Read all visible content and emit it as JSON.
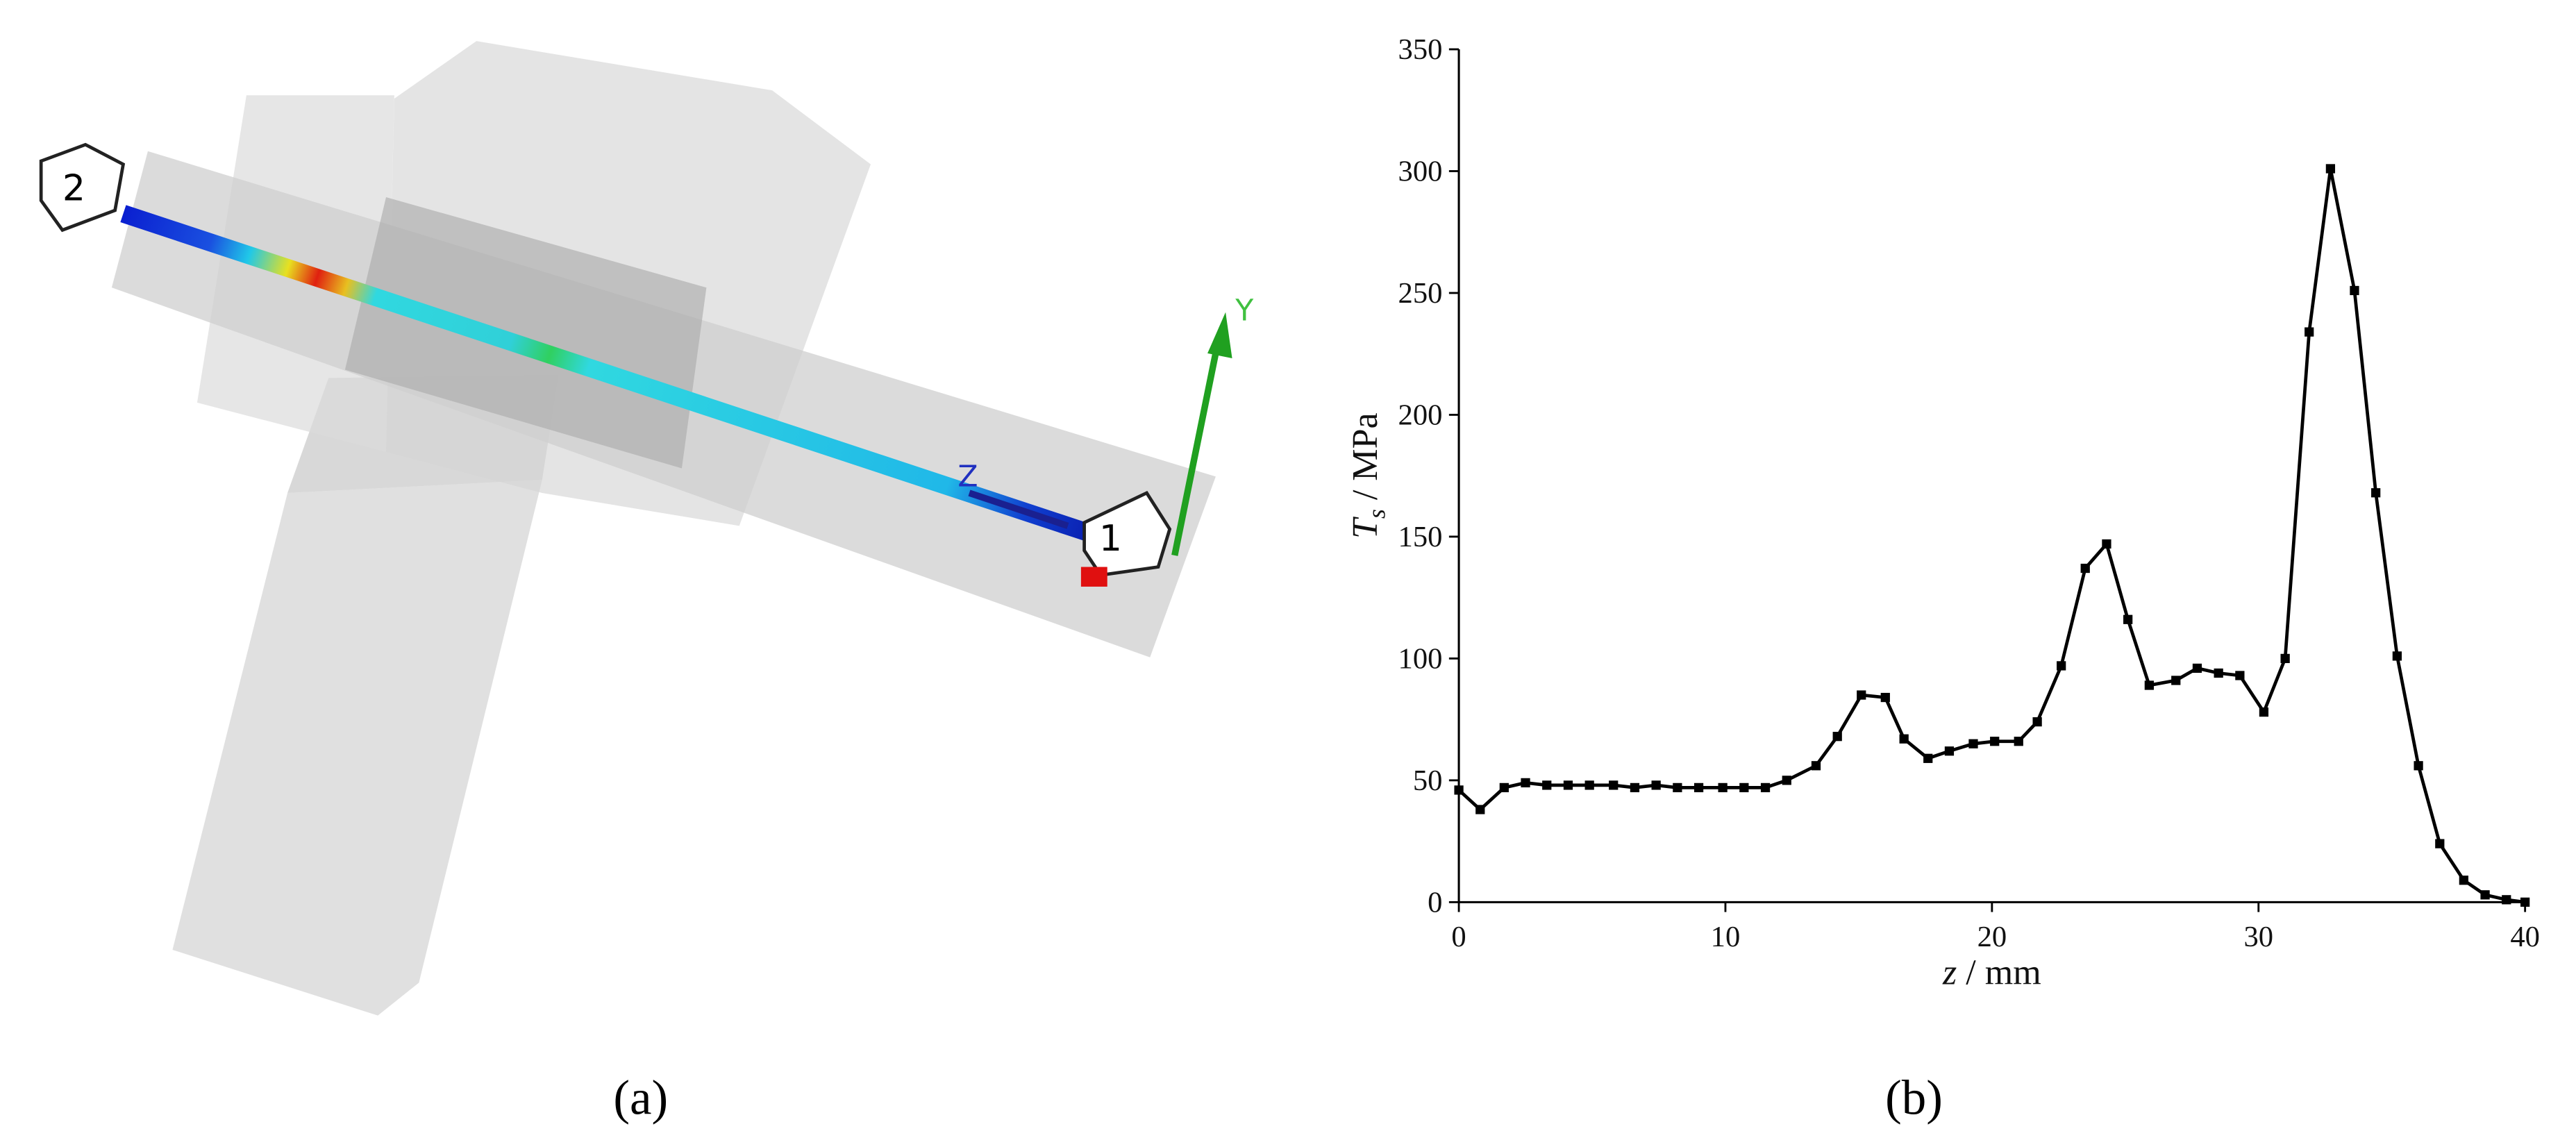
{
  "panel_a": {
    "caption": "(a)",
    "points": [
      "2",
      "1"
    ],
    "axes": [
      "Z",
      "Y"
    ]
  },
  "panel_b": {
    "caption": "(b)"
  },
  "chart_data": {
    "type": "line",
    "xlabel": {
      "symbol": "z",
      "unit": " / mm"
    },
    "ylabel": {
      "symbol": "T",
      "subscript": "s",
      "unit": " / MPa"
    },
    "x": [
      0,
      0.8,
      1.7,
      2.5,
      3.3,
      4.1,
      4.9,
      5.8,
      6.6,
      7.4,
      8.2,
      9.0,
      9.9,
      10.7,
      11.5,
      12.3,
      13.4,
      14.2,
      15.1,
      16.0,
      16.7,
      17.6,
      18.4,
      19.3,
      20.1,
      21.0,
      21.7,
      22.6,
      23.5,
      24.3,
      25.1,
      25.9,
      26.9,
      27.7,
      28.5,
      29.3,
      30.2,
      31.0,
      31.9,
      32.7,
      33.6,
      34.4,
      35.2,
      36.0,
      36.8,
      37.7,
      38.5,
      39.3,
      40
    ],
    "series": [
      {
        "color": "#000000",
        "values": [
          46,
          38,
          47,
          49,
          48,
          48,
          48,
          48,
          47,
          48,
          47,
          47,
          47,
          47,
          47,
          50,
          56,
          68,
          85,
          84,
          67,
          59,
          62,
          65,
          66,
          66,
          74,
          97,
          137,
          147,
          116,
          89,
          91,
          96,
          94,
          93,
          78,
          100,
          234,
          301,
          251,
          168,
          101,
          56,
          24,
          9,
          3,
          1,
          0
        ]
      }
    ],
    "xlim": [
      0,
      40
    ],
    "xticks": [
      0,
      10,
      20,
      30,
      40
    ],
    "ylim": [
      0,
      350
    ],
    "yticks": [
      0,
      50,
      100,
      150,
      200,
      250,
      300,
      350
    ]
  }
}
